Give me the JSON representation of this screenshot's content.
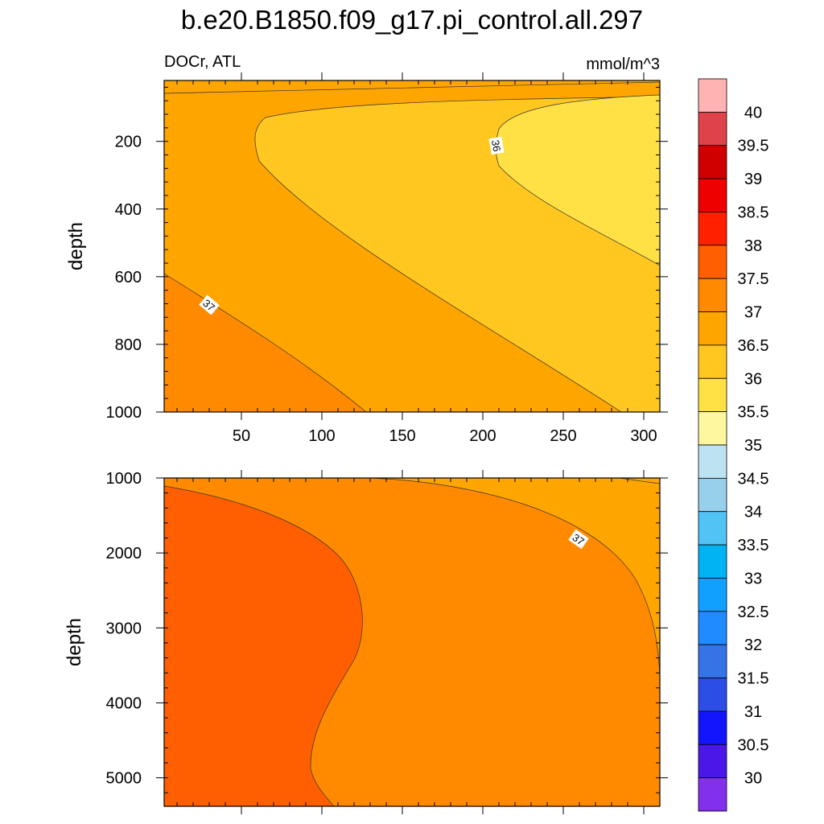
{
  "figure": {
    "title": "b.e20.B1850.f09_g17.pi_control.all.297",
    "left_label": "DOCr, ATL",
    "right_label": "mmol/m^3"
  },
  "chart_data": [
    {
      "type": "contour",
      "panel": "upper",
      "xlabel": "",
      "ylabel": "depth",
      "xlim": [
        2,
        310
      ],
      "ylim": [
        1000,
        20
      ],
      "xticks": [
        50,
        100,
        150,
        200,
        250,
        300
      ],
      "yticks": [
        200,
        400,
        600,
        800,
        1000
      ],
      "contour_labels": [
        "36",
        "37"
      ],
      "regions": [
        {
          "level": "36.5-37",
          "color": "#ffa500"
        },
        {
          "level": "36-36.5",
          "color": "#ffc71f"
        },
        {
          "level": "35.5-36",
          "color": "#ffe145"
        },
        {
          "level": "37-37.5",
          "color": "#ff8a00"
        }
      ]
    },
    {
      "type": "contour",
      "panel": "lower",
      "xlabel": "",
      "ylabel": "depth",
      "xlim": [
        2,
        310
      ],
      "ylim": [
        5380,
        1000
      ],
      "yticks": [
        1000,
        2000,
        3000,
        4000,
        5000
      ],
      "contour_labels": [
        "37"
      ],
      "regions": [
        {
          "level": "37.5-38",
          "color": "#ff5f00"
        },
        {
          "level": "37-37.5",
          "color": "#ff8a00"
        },
        {
          "level": "36.5-37",
          "color": "#ffa500"
        }
      ]
    }
  ],
  "colorbar": {
    "labels": [
      "40",
      "39.5",
      "39",
      "38.5",
      "38",
      "37.5",
      "37",
      "36.5",
      "36",
      "35.5",
      "35",
      "34.5",
      "34",
      "33.5",
      "33",
      "32.5",
      "32",
      "31.5",
      "31",
      "30.5",
      "30"
    ],
    "colors": [
      "#ffb3b3",
      "#e0424a",
      "#d00000",
      "#ee0000",
      "#ff2000",
      "#ff5f00",
      "#ff8a00",
      "#ffa500",
      "#ffc71f",
      "#ffe145",
      "#fff6a0",
      "#bde3f3",
      "#98cfea",
      "#52c3f5",
      "#00b4f3",
      "#12a0ff",
      "#208aff",
      "#3574e6",
      "#2c4ee6",
      "#1316fc",
      "#4a17e8",
      "#8330ed"
    ]
  }
}
